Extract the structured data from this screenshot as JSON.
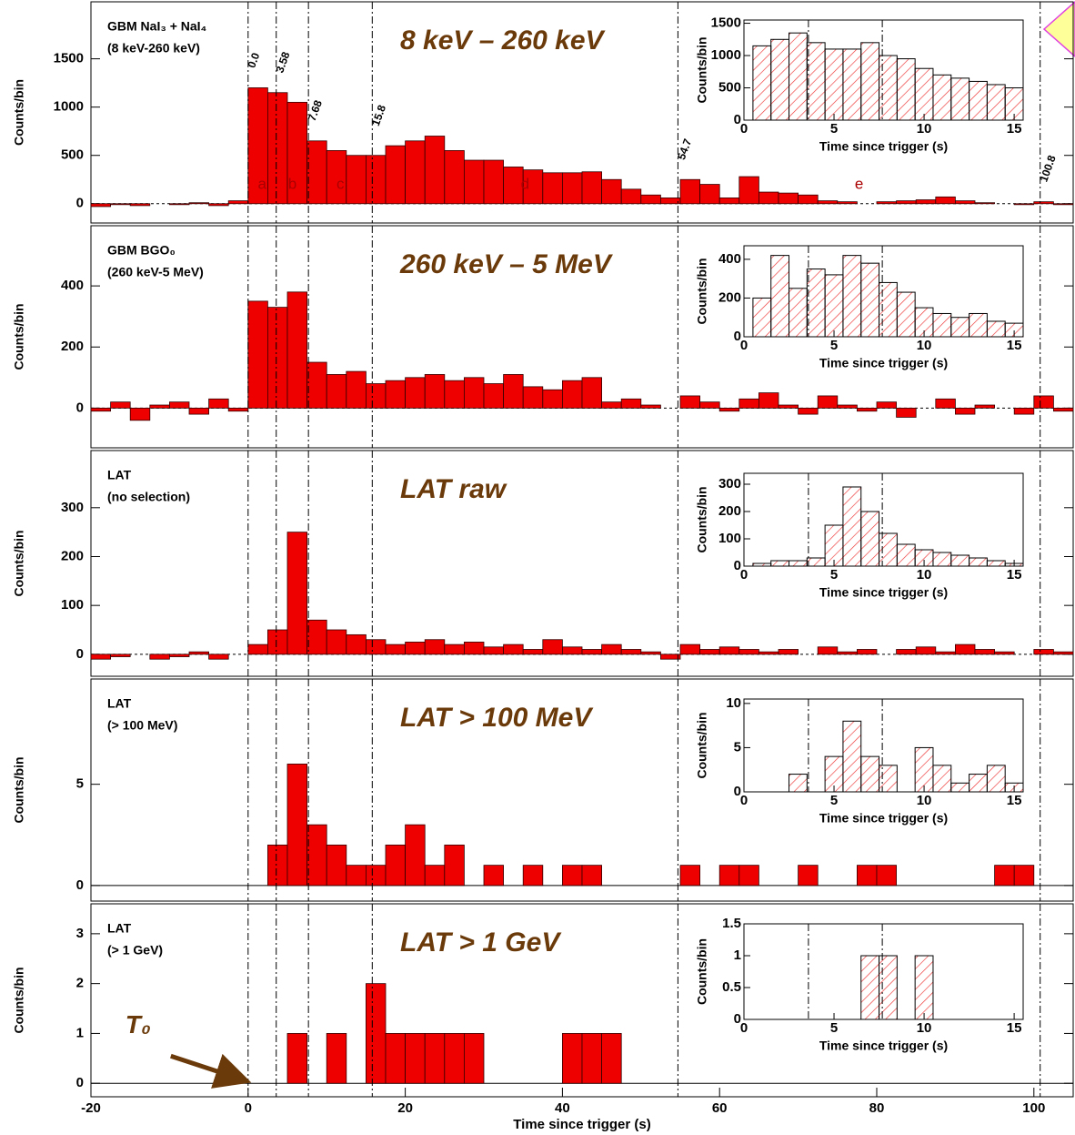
{
  "chart_data": [
    {
      "type": "histogram",
      "title": "8 keV – 260 keV",
      "label": [
        "GBM NaI₃ + NaI₄",
        "(8 keV-260 keV)"
      ],
      "ylabel": "Counts/bin",
      "color": "#ee0000",
      "xlim": [
        -20,
        105
      ],
      "ylim": [
        -200,
        2090
      ],
      "yticks": [
        0,
        500,
        1000,
        1500
      ],
      "markers": [
        {
          "value": 0,
          "label": "0.0"
        },
        3.58,
        7.68,
        15.8,
        54.7,
        100.8
      ],
      "segments": [
        "a",
        "b",
        "c",
        "d",
        "e"
      ],
      "bins": [
        -20,
        -17.5,
        -15,
        -12.5,
        -10,
        -7.5,
        -5,
        -2.5,
        0,
        2.5,
        5,
        7.5,
        10,
        12.5,
        15,
        17.5,
        20,
        22.5,
        25,
        27.5,
        30,
        32.5,
        35,
        37.5,
        40,
        42.5,
        45,
        47.5,
        50,
        52.5,
        55,
        57.5,
        60,
        62.5,
        65,
        67.5,
        70,
        72.5,
        75,
        77.5,
        80,
        82.5,
        85,
        87.5,
        90,
        92.5,
        95,
        97.5,
        100,
        102.5,
        105
      ],
      "values": [
        -30,
        -10,
        -20,
        0,
        -10,
        10,
        -20,
        30,
        1200,
        1150,
        1050,
        650,
        550,
        500,
        500,
        600,
        650,
        700,
        550,
        450,
        450,
        380,
        350,
        320,
        320,
        330,
        250,
        150,
        90,
        60,
        250,
        200,
        60,
        280,
        120,
        110,
        90,
        30,
        20,
        0,
        20,
        30,
        40,
        70,
        30,
        10,
        0,
        -10,
        20,
        -10
      ],
      "inset": {
        "type": "histogram",
        "xlabel": "Time since trigger (s)",
        "ylabel": "Counts/bin",
        "xlim": [
          0,
          15.5
        ],
        "xticks": [
          0,
          5,
          10,
          15
        ],
        "ylim": [
          0,
          1550
        ],
        "yticks": [
          0,
          500,
          1000,
          1500
        ],
        "bins": [
          0.5,
          1.5,
          2.5,
          3.5,
          4.5,
          5.5,
          6.5,
          7.5,
          8.5,
          9.5,
          10.5,
          11.5,
          12.5,
          13.5,
          14.5,
          15.5
        ],
        "values": [
          1150,
          1250,
          1350,
          1200,
          1100,
          1100,
          1200,
          1000,
          950,
          800,
          700,
          650,
          600,
          550,
          500
        ]
      }
    },
    {
      "type": "histogram",
      "title": "260 keV – 5 MeV",
      "label": [
        "GBM BGO₀",
        "(260 keV-5 MeV)"
      ],
      "ylabel": "Counts/bin",
      "color": "#ee0000",
      "xlim": [
        -20,
        105
      ],
      "ylim": [
        -130,
        597
      ],
      "yticks": [
        0,
        200,
        400
      ],
      "bins": [
        -20,
        -17.5,
        -15,
        -12.5,
        -10,
        -7.5,
        -5,
        -2.5,
        0,
        2.5,
        5,
        7.5,
        10,
        12.5,
        15,
        17.5,
        20,
        22.5,
        25,
        27.5,
        30,
        32.5,
        35,
        37.5,
        40,
        42.5,
        45,
        47.5,
        50,
        52.5,
        55,
        57.5,
        60,
        62.5,
        65,
        67.5,
        70,
        72.5,
        75,
        77.5,
        80,
        82.5,
        85,
        87.5,
        90,
        92.5,
        95,
        97.5,
        100,
        102.5,
        105
      ],
      "values": [
        -10,
        20,
        -40,
        10,
        20,
        -20,
        30,
        -10,
        350,
        330,
        380,
        150,
        110,
        120,
        80,
        90,
        100,
        110,
        90,
        100,
        80,
        110,
        70,
        60,
        90,
        100,
        20,
        30,
        10,
        0,
        40,
        20,
        -10,
        30,
        50,
        10,
        -20,
        40,
        10,
        -10,
        20,
        -30,
        0,
        30,
        -20,
        10,
        0,
        -20,
        40,
        -10
      ],
      "inset": {
        "type": "histogram",
        "xlabel": "Time since trigger (s)",
        "ylabel": "Counts/bin",
        "xlim": [
          0,
          15.5
        ],
        "xticks": [
          0,
          5,
          10,
          15
        ],
        "ylim": [
          0,
          470
        ],
        "yticks": [
          0,
          200,
          400
        ],
        "bins": [
          0.5,
          1.5,
          2.5,
          3.5,
          4.5,
          5.5,
          6.5,
          7.5,
          8.5,
          9.5,
          10.5,
          11.5,
          12.5,
          13.5,
          14.5,
          15.5
        ],
        "values": [
          200,
          420,
          250,
          350,
          320,
          420,
          380,
          280,
          230,
          150,
          120,
          100,
          120,
          80,
          70
        ]
      }
    },
    {
      "type": "histogram",
      "title": "LAT raw",
      "label": [
        "LAT",
        "(no selection)"
      ],
      "ylabel": "Counts/bin",
      "color": "#ee0000",
      "xlim": [
        -20,
        105
      ],
      "ylim": [
        -45,
        417
      ],
      "yticks": [
        0,
        100,
        200,
        300
      ],
      "bins": [
        -20,
        -17.5,
        -15,
        -12.5,
        -10,
        -7.5,
        -5,
        -2.5,
        0,
        2.5,
        5,
        7.5,
        10,
        12.5,
        15,
        17.5,
        20,
        22.5,
        25,
        27.5,
        30,
        32.5,
        35,
        37.5,
        40,
        42.5,
        45,
        47.5,
        50,
        52.5,
        55,
        57.5,
        60,
        62.5,
        65,
        67.5,
        70,
        72.5,
        75,
        77.5,
        80,
        82.5,
        85,
        87.5,
        90,
        92.5,
        95,
        97.5,
        100,
        102.5,
        105
      ],
      "values": [
        -10,
        -5,
        0,
        -10,
        -5,
        5,
        -10,
        0,
        20,
        50,
        250,
        70,
        50,
        40,
        30,
        20,
        25,
        30,
        20,
        25,
        15,
        20,
        10,
        30,
        15,
        10,
        20,
        10,
        5,
        -10,
        20,
        10,
        15,
        10,
        5,
        10,
        0,
        15,
        5,
        10,
        0,
        10,
        15,
        5,
        20,
        10,
        5,
        0,
        10,
        5
      ],
      "inset": {
        "type": "histogram",
        "xlabel": "Time since trigger (s)",
        "ylabel": "Counts/bin",
        "xlim": [
          0,
          15.5
        ],
        "xticks": [
          0,
          5,
          10,
          15
        ],
        "ylim": [
          0,
          340
        ],
        "yticks": [
          0,
          100,
          200,
          300
        ],
        "bins": [
          0.5,
          1.5,
          2.5,
          3.5,
          4.5,
          5.5,
          6.5,
          7.5,
          8.5,
          9.5,
          10.5,
          11.5,
          12.5,
          13.5,
          14.5,
          15.5
        ],
        "values": [
          10,
          20,
          20,
          30,
          150,
          290,
          200,
          120,
          80,
          60,
          50,
          40,
          30,
          20,
          10
        ]
      }
    },
    {
      "type": "histogram",
      "title": "LAT > 100 MeV",
      "label": [
        "LAT",
        "(> 100 MeV)"
      ],
      "ylabel": "Counts/bin",
      "color": "#ee0000",
      "xlim": [
        -20,
        105
      ],
      "ylim": [
        -0.77,
        10.2
      ],
      "yticks": [
        0,
        5
      ],
      "bins": [
        -20,
        -17.5,
        -15,
        -12.5,
        -10,
        -7.5,
        -5,
        -2.5,
        0,
        2.5,
        5,
        7.5,
        10,
        12.5,
        15,
        17.5,
        20,
        22.5,
        25,
        27.5,
        30,
        32.5,
        35,
        37.5,
        40,
        42.5,
        45,
        47.5,
        50,
        52.5,
        55,
        57.5,
        60,
        62.5,
        65,
        67.5,
        70,
        72.5,
        75,
        77.5,
        80,
        82.5,
        85,
        87.5,
        90,
        92.5,
        95,
        97.5,
        100,
        102.5,
        105
      ],
      "values": [
        0,
        0,
        0,
        0,
        0,
        0,
        0,
        0,
        0,
        2,
        6,
        3,
        2,
        1,
        1,
        2,
        3,
        1,
        2,
        0,
        1,
        0,
        1,
        0,
        1,
        1,
        0,
        0,
        0,
        0,
        1,
        0,
        1,
        1,
        0,
        0,
        1,
        0,
        0,
        1,
        1,
        0,
        0,
        0,
        0,
        0,
        1,
        1,
        0,
        0
      ],
      "inset": {
        "type": "histogram",
        "xlabel": "Time since trigger (s)",
        "ylabel": "Counts/bin",
        "xlim": [
          0,
          15.5
        ],
        "xticks": [
          0,
          5,
          10,
          15
        ],
        "ylim": [
          0,
          10.5
        ],
        "yticks": [
          0,
          5,
          10
        ],
        "bins": [
          0.5,
          1.5,
          2.5,
          3.5,
          4.5,
          5.5,
          6.5,
          7.5,
          8.5,
          9.5,
          10.5,
          11.5,
          12.5,
          13.5,
          14.5,
          15.5
        ],
        "values": [
          0,
          0,
          2,
          0,
          4,
          8,
          4,
          3,
          0,
          5,
          3,
          1,
          2,
          3,
          1
        ]
      }
    },
    {
      "type": "histogram",
      "title": "LAT > 1 GeV",
      "label": [
        "LAT",
        "(> 1 GeV)"
      ],
      "ylabel": "Counts/bin",
      "color": "#ee0000",
      "annotation": "T₀",
      "xlabel": "Time since trigger (s)",
      "xlim": [
        -20,
        105
      ],
      "xticks": [
        -20,
        0,
        20,
        40,
        60,
        80,
        100
      ],
      "ylim": [
        -0.27,
        3.6
      ],
      "yticks": [
        0,
        1,
        2,
        3
      ],
      "bins": [
        -20,
        -17.5,
        -15,
        -12.5,
        -10,
        -7.5,
        -5,
        -2.5,
        0,
        2.5,
        5,
        7.5,
        10,
        12.5,
        15,
        17.5,
        20,
        22.5,
        25,
        27.5,
        30,
        32.5,
        35,
        37.5,
        40,
        42.5,
        45,
        47.5,
        50,
        52.5,
        55,
        57.5,
        60,
        62.5,
        65,
        67.5,
        70,
        72.5,
        75,
        77.5,
        80,
        82.5,
        85,
        87.5,
        90,
        92.5,
        95,
        97.5,
        100,
        102.5,
        105
      ],
      "values": [
        0,
        0,
        0,
        0,
        0,
        0,
        0,
        0,
        0,
        0,
        1,
        0,
        1,
        0,
        2,
        1,
        1,
        1,
        1,
        1,
        0,
        0,
        0,
        0,
        1,
        1,
        1,
        0,
        0,
        0,
        0,
        0,
        0,
        0,
        0,
        0,
        0,
        0,
        0,
        0,
        0,
        0,
        0,
        0,
        0,
        0,
        0,
        0,
        0,
        0
      ],
      "inset": {
        "type": "histogram",
        "xlabel": "Time since trigger (s)",
        "ylabel": "Counts/bin",
        "xlim": [
          0,
          15.5
        ],
        "xticks": [
          0,
          5,
          10,
          15
        ],
        "ylim": [
          0,
          1.5
        ],
        "yticks": [
          0,
          0.5,
          1,
          1.5
        ],
        "bins": [
          0.5,
          1.5,
          2.5,
          3.5,
          4.5,
          5.5,
          6.5,
          7.5,
          8.5,
          9.5,
          10.5,
          11.5,
          12.5,
          13.5,
          14.5,
          15.5
        ],
        "values": [
          0,
          0,
          0,
          0,
          0,
          0,
          1,
          1,
          0,
          1,
          0,
          0,
          0,
          0,
          0
        ]
      }
    }
  ]
}
